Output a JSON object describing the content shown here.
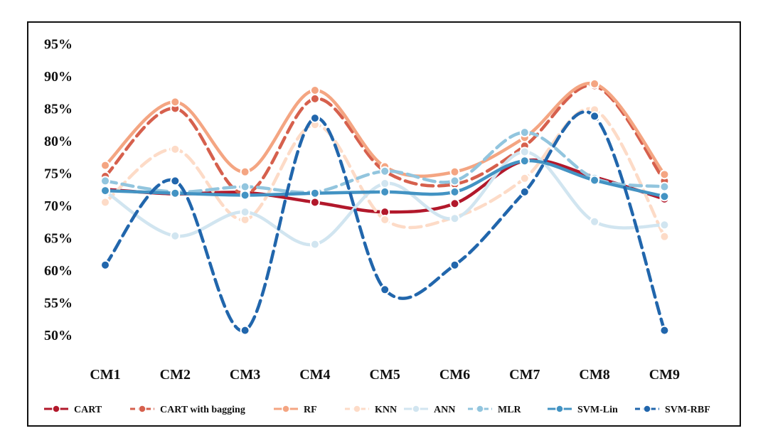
{
  "chart_data": {
    "type": "line",
    "title": "",
    "xlabel": "",
    "ylabel": "",
    "categories": [
      "CM1",
      "CM2",
      "CM3",
      "CM4",
      "CM5",
      "CM6",
      "CM7",
      "CM8",
      "CM9"
    ],
    "ylim": [
      45,
      97
    ],
    "yticks": [
      50,
      55,
      60,
      65,
      70,
      75,
      80,
      85,
      90,
      95
    ],
    "ytick_labels": [
      "50%",
      "55%",
      "60%",
      "65%",
      "70%",
      "75%",
      "80%",
      "85%",
      "90%",
      "95%"
    ],
    "grid": false,
    "legend_position": "bottom",
    "series": [
      {
        "name": "CART",
        "color": "#b2182b",
        "dash": "solid",
        "values": [
          72.5,
          71.8,
          72.0,
          70.5,
          69.0,
          70.3,
          76.9,
          74.4,
          71.0
        ]
      },
      {
        "name": "CART with bagging",
        "color": "#d6604d",
        "dash": "dashed",
        "values": [
          74.5,
          85.0,
          71.8,
          86.5,
          75.3,
          73.3,
          79.2,
          88.5,
          73.8
        ]
      },
      {
        "name": "RF",
        "color": "#f4a582",
        "dash": "solid",
        "values": [
          76.2,
          86.0,
          75.2,
          87.8,
          76.0,
          75.2,
          80.5,
          88.8,
          74.8
        ]
      },
      {
        "name": "KNN",
        "color": "#fddbc7",
        "dash": "dashed",
        "values": [
          70.5,
          78.7,
          67.8,
          82.5,
          67.8,
          68.2,
          74.2,
          84.8,
          65.2
        ]
      },
      {
        "name": "ANN",
        "color": "#d1e5f0",
        "dash": "solid",
        "values": [
          72.2,
          65.3,
          69.0,
          64.0,
          73.4,
          68.0,
          78.3,
          67.5,
          67.0
        ]
      },
      {
        "name": "MLR",
        "color": "#92c5de",
        "dash": "dashed",
        "values": [
          73.8,
          72.1,
          72.9,
          72.1,
          75.3,
          73.8,
          81.3,
          74.2,
          72.9
        ]
      },
      {
        "name": "SVM-Lin",
        "color": "#4393c3",
        "dash": "solid",
        "values": [
          72.3,
          71.9,
          71.6,
          71.9,
          72.1,
          72.1,
          76.9,
          73.9,
          71.4
        ]
      },
      {
        "name": "SVM-RBF",
        "color": "#2166ac",
        "dash": "dashed",
        "values": [
          60.8,
          73.8,
          50.7,
          83.5,
          57.0,
          60.8,
          72.1,
          83.8,
          50.7
        ]
      }
    ]
  }
}
